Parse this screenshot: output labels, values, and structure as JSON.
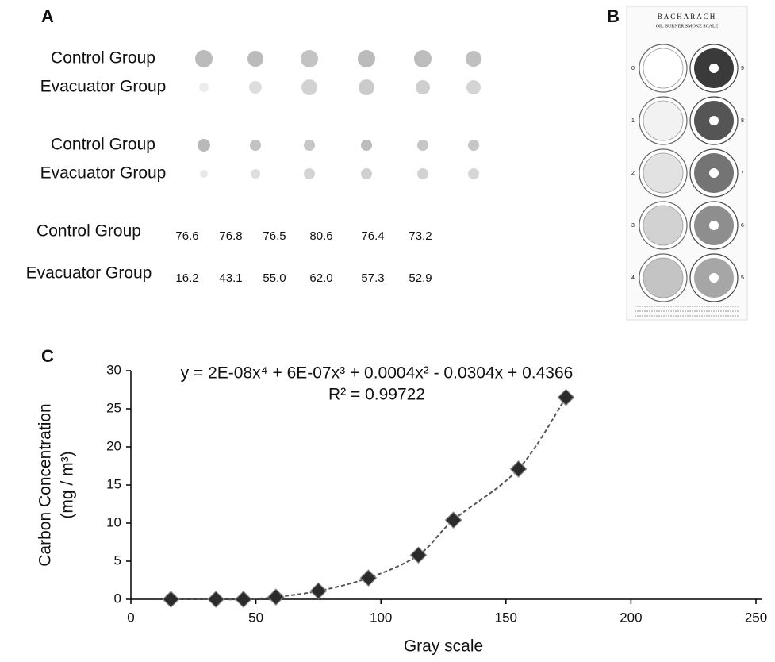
{
  "panel_a": {
    "label": "A",
    "spot_rows": [
      "Control Group",
      "Evacuator Group",
      "Control Group",
      "Evacuator Group"
    ],
    "table": {
      "rows": [
        {
          "name": "Control Group",
          "values": [
            "76.6",
            "76.8",
            "76.5",
            "80.6",
            "76.4",
            "73.2"
          ]
        },
        {
          "name": "Evacuator Group",
          "values": [
            "16.2",
            "43.1",
            "55.0",
            "62.0",
            "57.3",
            "52.9"
          ]
        }
      ]
    }
  },
  "panel_b": {
    "label": "B",
    "title": "BACHARACH",
    "subtitle": "OIL BURNER SMOKE SCALE",
    "left_numbers": [
      "0",
      "1",
      "2",
      "3",
      "4"
    ],
    "right_numbers": [
      "9",
      "8",
      "7",
      "6",
      "5"
    ]
  },
  "chart_data": {
    "type": "scatter",
    "panel_label": "C",
    "equation": "y = 2E-08x⁴ + 6E-07x³ + 0.0004x² - 0.0304x + 0.4366",
    "r_squared": "R² = 0.99722",
    "x_label": "Gray scale",
    "y_label": "Carbon Concentration",
    "y_label_unit": "(mg / m³)",
    "x": [
      16,
      34,
      45,
      58,
      75,
      95,
      115,
      129,
      155,
      174
    ],
    "values": [
      0,
      0,
      0,
      0.3,
      1.1,
      2.8,
      5.8,
      10.4,
      17.1,
      26.5
    ],
    "color": "#2b2b2b",
    "xlim": [
      0,
      250
    ],
    "ylim": [
      0,
      30
    ],
    "xticks": [
      0,
      50,
      100,
      150,
      200,
      250
    ],
    "yticks": [
      0,
      5,
      10,
      15,
      20,
      25,
      30
    ]
  }
}
